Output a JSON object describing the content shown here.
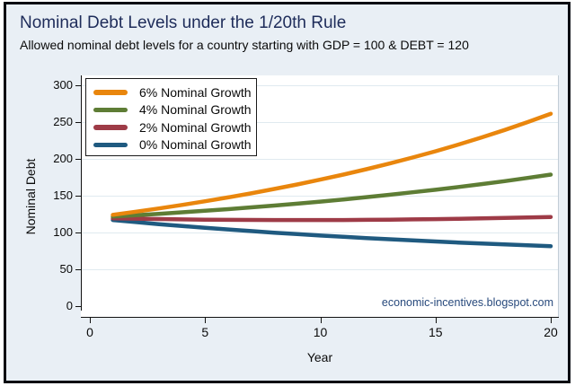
{
  "figure": {
    "title": "Nominal Debt Levels under the 1/20th Rule",
    "subtitle": "Allowed nominal debt levels for a country starting with GDP = 100 & DEBT = 120",
    "watermark": "economic-incentives.blogspot.com"
  },
  "chart_data": {
    "type": "line",
    "title": "Nominal Debt Levels under the 1/20th Rule",
    "subtitle": "Allowed nominal debt levels for a country starting with GDP = 100 & DEBT = 120",
    "xlabel": "Year",
    "ylabel": "Nominal Debt",
    "xlim": [
      0,
      20
    ],
    "ylim": [
      0,
      300
    ],
    "x_ticks": [
      0,
      5,
      10,
      15,
      20
    ],
    "y_ticks": [
      0,
      50,
      100,
      150,
      200,
      250,
      300
    ],
    "grid": "horizontal",
    "legend_position": "top-left-inside",
    "annotation": "economic-incentives.blogspot.com",
    "x": [
      1,
      2,
      3,
      4,
      5,
      6,
      7,
      8,
      9,
      10,
      11,
      12,
      13,
      14,
      15,
      16,
      17,
      18,
      19,
      20
    ],
    "series": [
      {
        "name": "6% Nominal Growth",
        "color": "#e9860d",
        "values": [
          124.0,
          128.3,
          132.7,
          137.4,
          142.4,
          147.7,
          153.2,
          159.1,
          165.3,
          171.8,
          178.7,
          186.0,
          193.7,
          201.8,
          210.4,
          219.5,
          229.1,
          239.3,
          250.0,
          261.4
        ]
      },
      {
        "name": "4% Nominal Growth",
        "color": "#5e7d35",
        "values": [
          121.7,
          123.5,
          125.4,
          127.4,
          129.5,
          131.7,
          134.1,
          136.6,
          139.2,
          142.0,
          144.9,
          148.0,
          151.2,
          154.6,
          158.1,
          161.8,
          165.7,
          169.8,
          174.1,
          178.6
        ]
      },
      {
        "name": "2% Nominal Growth",
        "color": "#9e3b47",
        "values": [
          119.3,
          118.8,
          118.3,
          117.8,
          117.5,
          117.2,
          117.1,
          116.9,
          116.9,
          116.9,
          117.0,
          117.2,
          117.5,
          117.8,
          118.2,
          118.6,
          119.1,
          119.7,
          120.4,
          121.1
        ]
      },
      {
        "name": "0% Nominal Growth",
        "color": "#1f5a80",
        "values": [
          117.0,
          114.2,
          111.4,
          108.9,
          106.4,
          104.1,
          101.9,
          99.8,
          97.8,
          95.9,
          94.1,
          92.4,
          90.8,
          89.3,
          87.8,
          86.4,
          85.1,
          83.8,
          82.6,
          81.5
        ]
      }
    ]
  }
}
